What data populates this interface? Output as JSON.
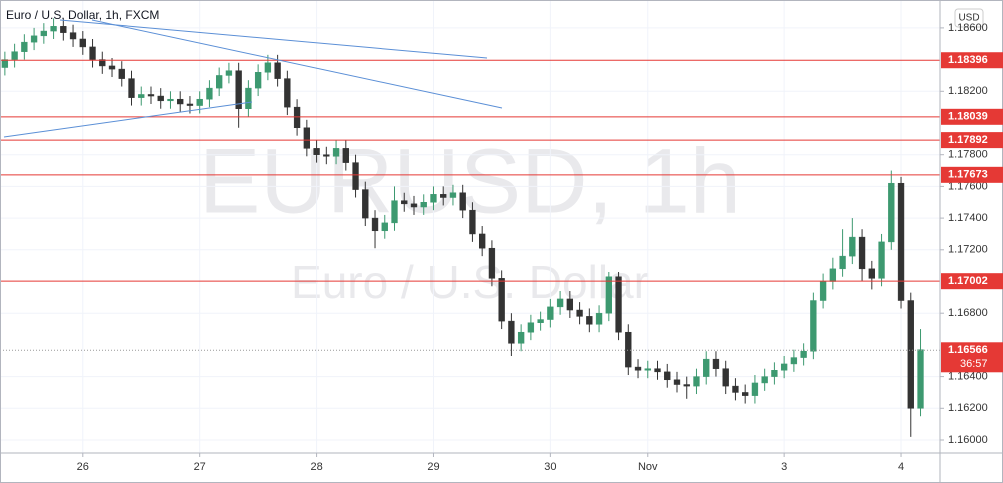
{
  "chart_data": {
    "type": "candlestick",
    "title": "Euro / U.S. Dollar, 1h, FXCM",
    "watermark": "EURUSD, 1h",
    "watermark_subtitle": "Euro / U.S. Dollar",
    "currency": "USD",
    "up_color": "#3d9970",
    "down_color": "#333333",
    "level_color": "#e53935",
    "ylim": [
      1.15918,
      1.18776
    ],
    "xlim": [
      -0.5,
      96
    ],
    "yticks": [
      {
        "value": 1.16,
        "label": "1.16000"
      },
      {
        "value": 1.162,
        "label": "1.16200"
      },
      {
        "value": 1.164,
        "label": "1.16400"
      },
      {
        "value": 1.168,
        "label": "1.16800"
      },
      {
        "value": 1.172,
        "label": "1.17200"
      },
      {
        "value": 1.174,
        "label": "1.17400"
      },
      {
        "value": 1.176,
        "label": "1.17600"
      },
      {
        "value": 1.178,
        "label": "1.17800"
      },
      {
        "value": 1.182,
        "label": "1.18200"
      },
      {
        "value": 1.186,
        "label": "1.18600"
      }
    ],
    "xticks": [
      {
        "value": 8,
        "label": "26"
      },
      {
        "value": 20,
        "label": "27"
      },
      {
        "value": 32,
        "label": "28"
      },
      {
        "value": 44,
        "label": "29"
      },
      {
        "value": 56,
        "label": "30"
      },
      {
        "value": 66,
        "label": "Nov"
      },
      {
        "value": 80,
        "label": "3"
      },
      {
        "value": 92,
        "label": "4"
      }
    ],
    "levels": [
      1.18396,
      1.18039,
      1.17892,
      1.17673,
      1.17002
    ],
    "last_price": 1.16566,
    "countdown": "36:57",
    "open": [
      1.1835,
      1.184,
      1.1845,
      1.1851,
      1.1855,
      1.1858,
      1.1861,
      1.1857,
      1.1853,
      1.1848,
      1.184,
      1.1836,
      1.1834,
      1.1828,
      1.1816,
      1.1818,
      1.1817,
      1.1814,
      1.1815,
      1.1812,
      1.1811,
      1.1815,
      1.1822,
      1.183,
      1.1833,
      1.1809,
      1.1822,
      1.1832,
      1.1838,
      1.1828,
      1.181,
      1.1797,
      1.1784,
      1.178,
      1.1779,
      1.1784,
      1.1775,
      1.1758,
      1.174,
      1.1732,
      1.1737,
      1.1751,
      1.1749,
      1.1747,
      1.175,
      1.1755,
      1.1753,
      1.1756,
      1.1745,
      1.173,
      1.1721,
      1.1702,
      1.1675,
      1.1661,
      1.1668,
      1.1674,
      1.1676,
      1.1684,
      1.1689,
      1.1682,
      1.1678,
      1.1673,
      1.168,
      1.1703,
      1.1668,
      1.1646,
      1.1644,
      1.1645,
      1.1643,
      1.1638,
      1.1635,
      1.1634,
      1.164,
      1.1651,
      1.1645,
      1.1634,
      1.163,
      1.1628,
      1.1636,
      1.164,
      1.1644,
      1.1648,
      1.1652,
      1.1656,
      1.1688,
      1.17,
      1.1708,
      1.1716,
      1.1728,
      1.1708,
      1.1702,
      1.1725,
      1.1762,
      1.1688,
      1.162
    ],
    "high": [
      1.1845,
      1.185,
      1.1856,
      1.186,
      1.1863,
      1.1866,
      1.1866,
      1.1862,
      1.1858,
      1.1853,
      1.1845,
      1.1841,
      1.1839,
      1.1833,
      1.1823,
      1.1823,
      1.1822,
      1.182,
      1.182,
      1.1817,
      1.182,
      1.1827,
      1.1835,
      1.1838,
      1.1838,
      1.1827,
      1.1837,
      1.1843,
      1.1843,
      1.1833,
      1.1815,
      1.1802,
      1.1789,
      1.1785,
      1.1789,
      1.1789,
      1.178,
      1.1763,
      1.1745,
      1.1742,
      1.176,
      1.1756,
      1.1754,
      1.1755,
      1.176,
      1.176,
      1.1761,
      1.1761,
      1.175,
      1.1735,
      1.1726,
      1.1707,
      1.168,
      1.1673,
      1.1679,
      1.1681,
      1.1689,
      1.1694,
      1.1694,
      1.1687,
      1.1683,
      1.1685,
      1.1706,
      1.1706,
      1.1673,
      1.1651,
      1.165,
      1.165,
      1.1648,
      1.1643,
      1.164,
      1.1645,
      1.1656,
      1.1656,
      1.165,
      1.1639,
      1.1635,
      1.1641,
      1.1645,
      1.1649,
      1.1653,
      1.1657,
      1.1661,
      1.1693,
      1.1705,
      1.1715,
      1.1733,
      1.174,
      1.1733,
      1.1713,
      1.173,
      1.177,
      1.1766,
      1.1693,
      1.167
    ],
    "low": [
      1.183,
      1.1835,
      1.184,
      1.1846,
      1.185,
      1.1853,
      1.1852,
      1.1848,
      1.1843,
      1.1835,
      1.1831,
      1.1829,
      1.1823,
      1.1811,
      1.1811,
      1.1812,
      1.1809,
      1.1809,
      1.1807,
      1.1806,
      1.1806,
      1.181,
      1.1817,
      1.1825,
      1.1797,
      1.1804,
      1.1817,
      1.1827,
      1.1823,
      1.1805,
      1.1792,
      1.1779,
      1.1775,
      1.1774,
      1.1774,
      1.177,
      1.1753,
      1.1735,
      1.1721,
      1.1727,
      1.1732,
      1.1744,
      1.1742,
      1.1742,
      1.1745,
      1.1748,
      1.1748,
      1.174,
      1.1725,
      1.1716,
      1.1697,
      1.167,
      1.1653,
      1.1656,
      1.1663,
      1.1669,
      1.1671,
      1.1679,
      1.1677,
      1.1673,
      1.1668,
      1.1668,
      1.1675,
      1.1663,
      1.1641,
      1.1639,
      1.1639,
      1.1638,
      1.1633,
      1.163,
      1.1626,
      1.1629,
      1.1635,
      1.164,
      1.1629,
      1.1625,
      1.1623,
      1.1623,
      1.1631,
      1.1635,
      1.1639,
      1.1643,
      1.1647,
      1.1651,
      1.1683,
      1.1695,
      1.1703,
      1.1711,
      1.17,
      1.1695,
      1.1697,
      1.172,
      1.1683,
      1.1602,
      1.1615
    ],
    "close": [
      1.184,
      1.1845,
      1.1851,
      1.1855,
      1.1858,
      1.1861,
      1.1857,
      1.1853,
      1.1848,
      1.184,
      1.1836,
      1.1834,
      1.1828,
      1.1816,
      1.1818,
      1.1817,
      1.1814,
      1.1815,
      1.1812,
      1.1811,
      1.1815,
      1.1822,
      1.183,
      1.1833,
      1.1809,
      1.1822,
      1.1832,
      1.1838,
      1.1828,
      1.181,
      1.1797,
      1.1784,
      1.178,
      1.1779,
      1.1784,
      1.1775,
      1.1758,
      1.174,
      1.1732,
      1.1737,
      1.1751,
      1.1749,
      1.1747,
      1.175,
      1.1755,
      1.1753,
      1.1756,
      1.1745,
      1.173,
      1.1721,
      1.1702,
      1.1675,
      1.1661,
      1.1668,
      1.1674,
      1.1676,
      1.1684,
      1.1689,
      1.1682,
      1.1678,
      1.1673,
      1.168,
      1.1703,
      1.1668,
      1.1646,
      1.1644,
      1.1645,
      1.1643,
      1.1638,
      1.1635,
      1.1634,
      1.164,
      1.1651,
      1.1645,
      1.1634,
      1.163,
      1.1628,
      1.1636,
      1.164,
      1.1644,
      1.1648,
      1.1652,
      1.1656,
      1.1688,
      1.17,
      1.1708,
      1.1716,
      1.1728,
      1.1708,
      1.1702,
      1.1725,
      1.1762,
      1.1688,
      1.162,
      1.1657
    ]
  }
}
